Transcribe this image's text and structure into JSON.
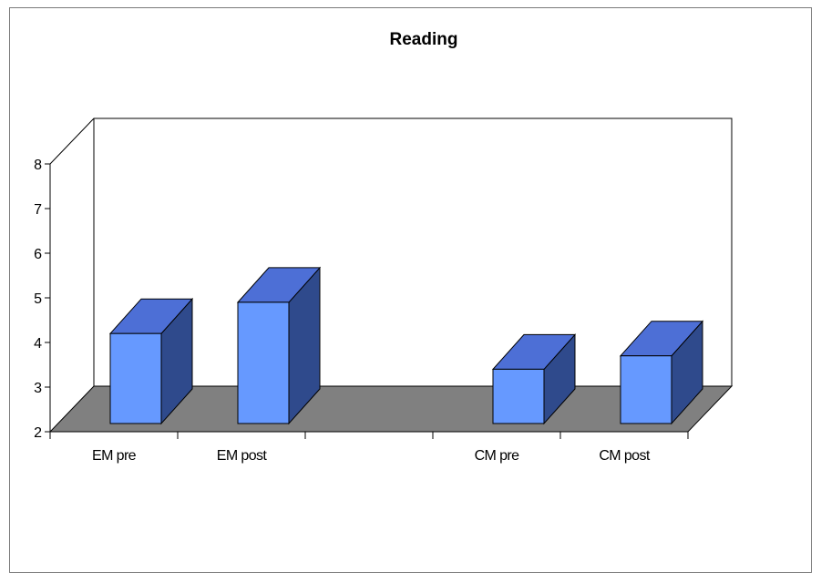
{
  "chart_data": {
    "type": "bar",
    "title": "Reading",
    "xlabel": "",
    "ylabel": "",
    "categories": [
      "EM pre",
      "EM post",
      "",
      "CM pre",
      "CM post"
    ],
    "values": [
      4.2,
      4.9,
      null,
      3.4,
      3.7
    ],
    "ylim": [
      2,
      8
    ],
    "yticks": [
      "2",
      "3",
      "4",
      "5",
      "6",
      "7",
      "8"
    ],
    "grid": false,
    "legend": "none",
    "three_d": true
  },
  "colors": {
    "bar_front": "#6699ff",
    "bar_top": "#4d6fd6",
    "bar_side": "#2f4a8c",
    "floor": "#808080",
    "axis": "#000000",
    "frame": "#7a7a7a"
  }
}
